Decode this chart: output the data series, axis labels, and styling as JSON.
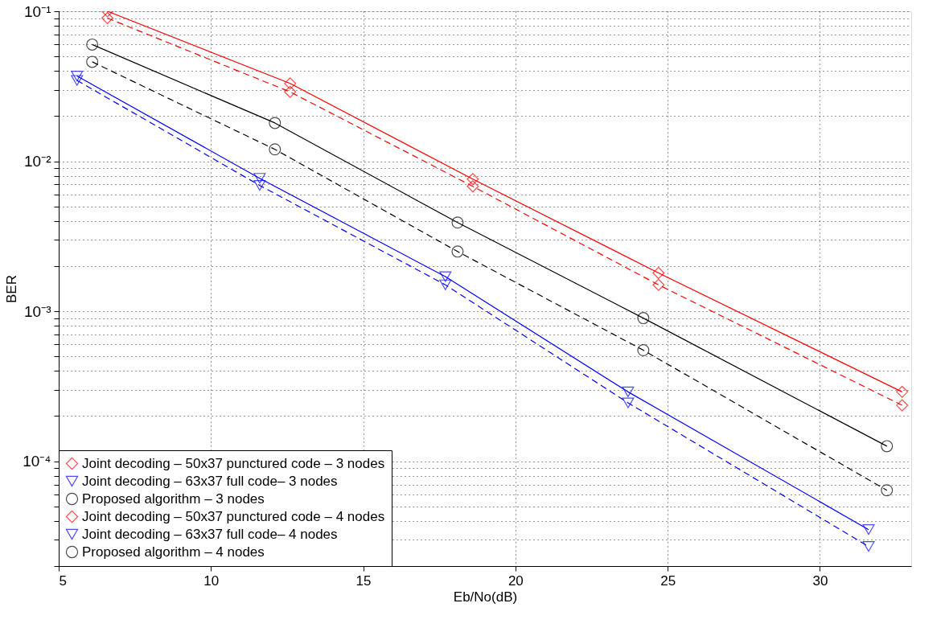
{
  "chart_data": {
    "type": "line",
    "xlabel": "Eb/No(dB)",
    "ylabel": "BER",
    "log": "y",
    "grid": true,
    "legend": "bottom left",
    "xlim": [
      5,
      33
    ],
    "xticks": [
      5,
      10,
      15,
      20,
      25,
      30
    ],
    "ylim": [
      2e-05,
      0.1
    ],
    "yticks": [
      {
        "value": 2e-05,
        "label": null
      },
      {
        "value": 3e-05,
        "label": null
      },
      {
        "value": 4e-05,
        "label": null
      },
      {
        "value": 5e-05,
        "label": null
      },
      {
        "value": 6e-05,
        "label": null
      },
      {
        "value": 7e-05,
        "label": null
      },
      {
        "value": 8e-05,
        "label": null
      },
      {
        "value": 9e-05,
        "label": null
      },
      {
        "value": 0.0001,
        "label": "10⁻⁴"
      },
      {
        "value": 0.0002,
        "label": null
      },
      {
        "value": 0.0003,
        "label": null
      },
      {
        "value": 0.0004,
        "label": null
      },
      {
        "value": 0.0005,
        "label": null
      },
      {
        "value": 0.0006,
        "label": null
      },
      {
        "value": 0.0007,
        "label": null
      },
      {
        "value": 0.0008,
        "label": null
      },
      {
        "value": 0.0009,
        "label": null
      },
      {
        "value": 0.001,
        "label": "10⁻³"
      },
      {
        "value": 0.002,
        "label": null
      },
      {
        "value": 0.003,
        "label": null
      },
      {
        "value": 0.004,
        "label": null
      },
      {
        "value": 0.005,
        "label": null
      },
      {
        "value": 0.006,
        "label": null
      },
      {
        "value": 0.007,
        "label": null
      },
      {
        "value": 0.008,
        "label": null
      },
      {
        "value": 0.009,
        "label": null
      },
      {
        "value": 0.01,
        "label": "10⁻²"
      },
      {
        "value": 0.02,
        "label": null
      },
      {
        "value": 0.03,
        "label": null
      },
      {
        "value": 0.04,
        "label": null
      },
      {
        "value": 0.05,
        "label": null
      },
      {
        "value": 0.06,
        "label": null
      },
      {
        "value": 0.07,
        "label": null
      },
      {
        "value": 0.08,
        "label": null
      },
      {
        "value": 0.09,
        "label": null
      },
      {
        "value": 0.1,
        "label": "10⁻¹"
      }
    ],
    "series": [
      {
        "name": "Joint decoding – 50x37 punctured code – 3 nodes",
        "color": "#ff0000",
        "marker": "diamond",
        "line_style": "solid",
        "x": [
          6.6,
          12.6,
          18.6,
          24.7,
          32.7
        ],
        "values": [
          0.1,
          0.033,
          0.0076,
          0.0018,
          0.00029
        ]
      },
      {
        "name": "Joint decoding – 63x37 full code– 3 nodes",
        "color": "#0000ff",
        "marker": "triangle",
        "line_style": "solid",
        "x": [
          5.6,
          11.6,
          17.7,
          23.7,
          31.6
        ],
        "values": [
          0.037,
          0.0077,
          0.0017,
          0.00029,
          3.5e-05
        ]
      },
      {
        "name": "Proposed algorithm – 3 nodes",
        "color": "#000000",
        "marker": "circle",
        "line_style": "solid",
        "x": [
          6.1,
          12.1,
          18.1,
          24.2,
          32.2
        ],
        "values": [
          0.06,
          0.018,
          0.0039,
          0.0009,
          0.000126
        ]
      },
      {
        "name": "Joint decoding – 50x37 punctured code – 4 nodes",
        "color": "#ff0000",
        "marker": "diamond",
        "line_style": "dashed",
        "x": [
          6.6,
          12.6,
          18.6,
          24.7,
          32.7
        ],
        "values": [
          0.09,
          0.029,
          0.0068,
          0.0015,
          0.000236
        ]
      },
      {
        "name": "Joint decoding – 63x37 full code– 4 nodes",
        "color": "#0000ff",
        "marker": "triangle",
        "line_style": "dashed",
        "x": [
          5.6,
          11.6,
          17.7,
          23.7,
          31.6
        ],
        "values": [
          0.0346,
          0.0069,
          0.0015,
          0.000245,
          2.7e-05
        ]
      },
      {
        "name": "Proposed algorithm – 4 nodes",
        "color": "#000000",
        "marker": "circle",
        "line_style": "dashed",
        "x": [
          6.1,
          12.1,
          18.1,
          24.2,
          32.2
        ],
        "values": [
          0.046,
          0.012,
          0.0025,
          0.00055,
          6.4e-05
        ]
      }
    ]
  }
}
